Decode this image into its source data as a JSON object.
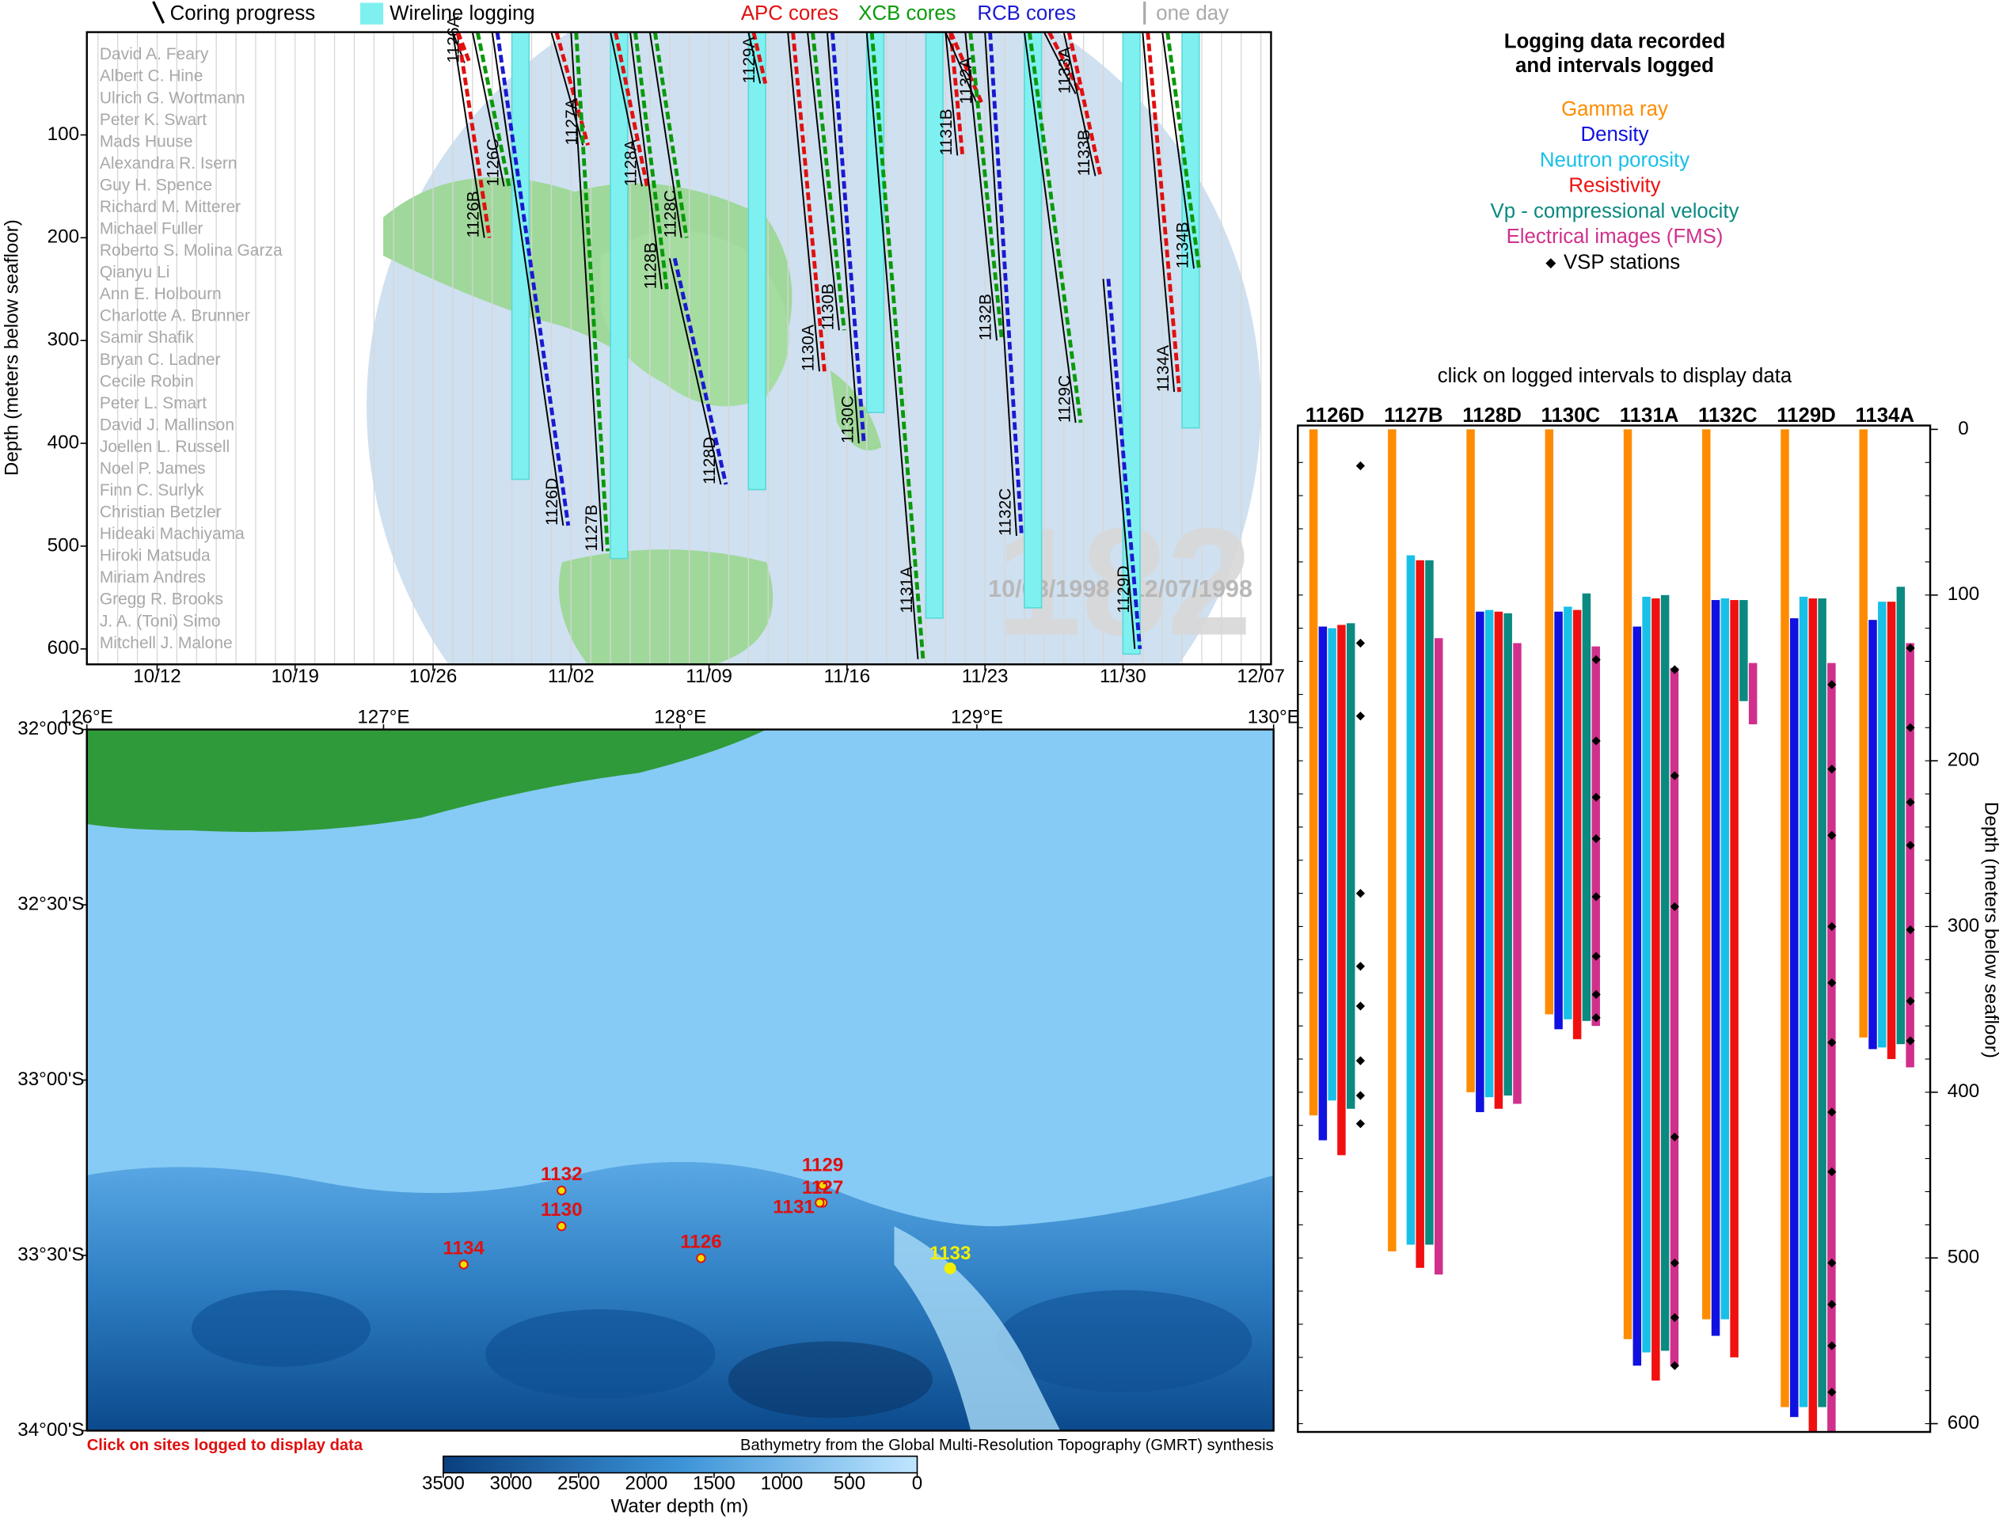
{
  "chart_data": [
    {
      "type": "timeline",
      "legend": [
        {
          "name": "Coring progress",
          "color": "#000000"
        },
        {
          "name": "Wireline logging",
          "color": "#7ff0f0"
        },
        {
          "name": "APC cores",
          "color": "#e01010"
        },
        {
          "name": "XCB cores",
          "color": "#0a9a0a"
        },
        {
          "name": "RCB cores",
          "color": "#1a1ad0"
        },
        {
          "name": "one day",
          "color": "#aaaaaa"
        }
      ],
      "ylabel": "Depth (meters below seafloor)",
      "ylim": [
        0,
        615
      ],
      "yticks": [
        100,
        200,
        300,
        400,
        500,
        600
      ],
      "xticks": [
        "10/12",
        "10/19",
        "10/26",
        "11/02",
        "11/09",
        "11/16",
        "11/23",
        "11/30",
        "12/07"
      ],
      "watermark": "182",
      "date_range": "10/08/1998 - 12/07/1998",
      "authors": [
        "David A. Feary",
        "Albert C. Hine",
        "Ulrich G. Wortmann",
        "Peter K. Swart",
        "Mads Huuse",
        "Alexandra R. Isern",
        "Guy H. Spence",
        "Richard M. Mitterer",
        "Michael Fuller",
        "Roberto S. Molina Garza",
        "Qianyu Li",
        "Ann E. Holbourn",
        "Charlotte A. Brunner",
        "Samir Shafik",
        "Bryan C. Ladner",
        "Cecile Robin",
        "Peter L. Smart",
        "David J. Mallinson",
        "Joellen L. Russell",
        "Noel P. James",
        "Finn C. Surlyk",
        "Christian Betzler",
        "Hideaki Machiyama",
        "Hiroki Matsuda",
        "Miriam Andres",
        "Gregg R. Brooks",
        "J. A. (Toni) Simo",
        "Mitchell J. Malone"
      ],
      "holes": [
        {
          "name": "1126A",
          "start": "10/27",
          "end": "10/27",
          "top": 0,
          "bottom": 30,
          "core": "APC"
        },
        {
          "name": "1126B",
          "start": "10/27",
          "end": "10/28",
          "top": 0,
          "bottom": 200,
          "core": "APC"
        },
        {
          "name": "1126C",
          "start": "10/28",
          "end": "10/29",
          "top": 0,
          "bottom": 150,
          "core": "XCB"
        },
        {
          "name": "1126D",
          "start": "10/29",
          "end": "11/01",
          "top": 0,
          "bottom": 480,
          "core": "RCB"
        },
        {
          "name": "1127A",
          "start": "11/01",
          "end": "11/02",
          "top": 0,
          "bottom": 110,
          "core": "APC"
        },
        {
          "name": "1127B",
          "start": "11/02",
          "end": "11/03",
          "top": 0,
          "bottom": 505,
          "core": "XCB"
        },
        {
          "name": "1128A",
          "start": "11/04",
          "end": "11/05",
          "top": 0,
          "bottom": 150,
          "core": "APC"
        },
        {
          "name": "1128B",
          "start": "11/05",
          "end": "11/06",
          "top": 0,
          "bottom": 250,
          "core": "XCB"
        },
        {
          "name": "1128C",
          "start": "11/06",
          "end": "11/07",
          "top": 0,
          "bottom": 200,
          "core": "XCB"
        },
        {
          "name": "1128D",
          "start": "11/07",
          "end": "11/09",
          "top": 220,
          "bottom": 440,
          "core": "RCB"
        },
        {
          "name": "1129A",
          "start": "11/11",
          "end": "11/11",
          "top": 0,
          "bottom": 50,
          "core": "APC"
        },
        {
          "name": "1130A",
          "start": "11/13",
          "end": "11/14",
          "top": 0,
          "bottom": 330,
          "core": "APC"
        },
        {
          "name": "1130B",
          "start": "11/14",
          "end": "11/15",
          "top": 0,
          "bottom": 290,
          "core": "XCB"
        },
        {
          "name": "1130C",
          "start": "11/15",
          "end": "11/16",
          "top": 0,
          "bottom": 400,
          "core": "RCB"
        },
        {
          "name": "1131A",
          "start": "11/17",
          "end": "11/19",
          "top": 0,
          "bottom": 610,
          "core": "XCB"
        },
        {
          "name": "1131B",
          "start": "11/21",
          "end": "11/21",
          "top": 0,
          "bottom": 120,
          "core": "APC"
        },
        {
          "name": "1132A",
          "start": "11/21",
          "end": "11/22",
          "top": 0,
          "bottom": 70,
          "core": "APC"
        },
        {
          "name": "1132B",
          "start": "11/22",
          "end": "11/23",
          "top": 0,
          "bottom": 300,
          "core": "XCB"
        },
        {
          "name": "1132C",
          "start": "11/23",
          "end": "11/24",
          "top": 0,
          "bottom": 490,
          "core": "RCB"
        },
        {
          "name": "1129C",
          "start": "11/25",
          "end": "11/27",
          "top": 0,
          "bottom": 380,
          "core": "XCB"
        },
        {
          "name": "1133A",
          "start": "11/26",
          "end": "11/27",
          "top": 0,
          "bottom": 60,
          "core": "APC"
        },
        {
          "name": "1133B",
          "start": "11/27",
          "end": "11/28",
          "top": 0,
          "bottom": 140,
          "core": "APC"
        },
        {
          "name": "1129D",
          "start": "11/29",
          "end": "11/30",
          "top": 240,
          "bottom": 600,
          "core": "RCB"
        },
        {
          "name": "1134A",
          "start": "12/01",
          "end": "12/02",
          "top": 0,
          "bottom": 350,
          "core": "APC"
        },
        {
          "name": "1134B",
          "start": "12/02",
          "end": "12/03",
          "top": 0,
          "bottom": 230,
          "core": "XCB"
        }
      ],
      "logging": [
        {
          "hole": "1126D",
          "start": "10/30",
          "end": "10/31",
          "bottom": 435
        },
        {
          "hole": "1127B",
          "start": "11/04",
          "end": "11/05",
          "bottom": 512
        },
        {
          "hole": "1128D",
          "start": "11/11",
          "end": "11/12",
          "bottom": 445
        },
        {
          "hole": "1130C",
          "start": "11/17",
          "end": "11/18",
          "bottom": 370
        },
        {
          "hole": "1131A",
          "start": "11/20",
          "end": "11/21",
          "bottom": 570
        },
        {
          "hole": "1132C",
          "start": "11/25",
          "end": "11/26",
          "bottom": 560
        },
        {
          "hole": "1129D",
          "start": "11/30",
          "end": "12/01",
          "bottom": 605
        },
        {
          "hole": "1134A",
          "start": "12/03",
          "end": "12/04",
          "bottom": 385
        }
      ]
    },
    {
      "type": "map",
      "xlim": [
        126,
        130
      ],
      "ylim": [
        -34,
        -32
      ],
      "xticks": [
        {
          "value": 126,
          "label": "126°E"
        },
        {
          "value": 127,
          "label": "127°E"
        },
        {
          "value": 128,
          "label": "128°E"
        },
        {
          "value": 129,
          "label": "129°E"
        },
        {
          "value": 130,
          "label": "130°E"
        }
      ],
      "yticks": [
        {
          "value": -32,
          "label": "32°00'S"
        },
        {
          "value": -32.5,
          "label": "32°30'S"
        },
        {
          "value": -33,
          "label": "33°00'S"
        },
        {
          "value": -33.5,
          "label": "33°30'S"
        },
        {
          "value": -34,
          "label": "34°00'S"
        }
      ],
      "sites": [
        {
          "name": "1132",
          "lon": 127.6,
          "lat": -33.315,
          "color": "#e01010"
        },
        {
          "name": "1130",
          "lon": 127.6,
          "lat": -33.417,
          "color": "#e01010"
        },
        {
          "name": "1134",
          "lon": 127.27,
          "lat": -33.526,
          "color": "#e01010"
        },
        {
          "name": "1126",
          "lon": 128.07,
          "lat": -33.508,
          "color": "#e01010"
        },
        {
          "name": "1129",
          "lon": 128.48,
          "lat": -33.3,
          "color": "#e01010"
        },
        {
          "name": "1127",
          "lon": 128.48,
          "lat": -33.35,
          "color": "#e01010"
        },
        {
          "name": "1131",
          "lon": 128.47,
          "lat": -33.35,
          "color": "#e01010"
        },
        {
          "name": "1133",
          "lon": 128.91,
          "lat": -33.537,
          "color": "#f0f000"
        }
      ],
      "note": "Click on sites logged to display data",
      "credit": "Bathymetry from the Global Multi-Resolution Topography (GMRT) synthesis",
      "colorbar": {
        "label": "Water depth (m)",
        "lim": [
          3500,
          0
        ],
        "ticks": [
          3500,
          3000,
          2500,
          2000,
          1500,
          1000,
          500,
          0
        ]
      }
    },
    {
      "type": "range_bar",
      "title": [
        "Logging data recorded",
        "and intervals logged"
      ],
      "subtitle": "click on logged intervals to display data",
      "ylabel": "Depth (meters below seafloor)",
      "ylim": [
        0,
        605
      ],
      "yticks": [
        0,
        100,
        200,
        300,
        400,
        500,
        600
      ],
      "categories": [
        "1126D",
        "1127B",
        "1128D",
        "1130C",
        "1131A",
        "1132C",
        "1129D",
        "1134A"
      ],
      "series": [
        {
          "name": "Gamma ray",
          "color": "#ff8c00",
          "top": [
            0,
            0,
            0,
            0,
            0,
            0,
            0,
            0
          ],
          "bottom": [
            414,
            496,
            400,
            353,
            549,
            537,
            590,
            367
          ]
        },
        {
          "name": "Density",
          "color": "#1010e0",
          "top": [
            119,
            null,
            110,
            110,
            119,
            103,
            114,
            115
          ],
          "bottom": [
            429,
            null,
            412,
            362,
            565,
            547,
            596,
            374
          ]
        },
        {
          "name": "Neutron porosity",
          "color": "#18c0e8",
          "top": [
            120,
            76,
            109,
            107,
            101,
            102,
            101,
            104
          ],
          "bottom": [
            405,
            492,
            403,
            356,
            557,
            537,
            590,
            373
          ]
        },
        {
          "name": "Resistivity",
          "color": "#f01010",
          "top": [
            118,
            79,
            110,
            109,
            102,
            103,
            102,
            104
          ],
          "bottom": [
            438,
            506,
            410,
            368,
            574,
            560,
            605,
            380
          ]
        },
        {
          "name": "Vp - compressional velocity",
          "color": "#0a8a80",
          "top": [
            117,
            79,
            111,
            99,
            100,
            103,
            102,
            95
          ],
          "bottom": [
            410,
            492,
            402,
            357,
            556,
            164,
            590,
            371
          ]
        },
        {
          "name": "Electrical images (FMS)",
          "color": "#d0308c",
          "top": [
            null,
            126,
            129,
            131,
            144,
            141,
            141,
            129
          ],
          "bottom": [
            null,
            510,
            407,
            360,
            565,
            178,
            605,
            385
          ]
        }
      ],
      "vsp": {
        "name": "VSP stations",
        "color": "#000000",
        "values": [
          [
            22,
            129,
            173,
            280,
            324,
            348,
            381,
            402,
            419
          ],
          [],
          [],
          [
            139,
            188,
            222,
            247,
            282,
            318,
            341,
            355
          ],
          [
            145,
            209,
            288,
            427,
            503,
            536,
            565
          ],
          [],
          [
            154,
            205,
            245,
            300,
            334,
            370,
            412,
            448,
            503,
            528,
            553,
            581
          ],
          [
            132,
            180,
            225,
            251,
            302,
            345,
            369
          ]
        ]
      }
    }
  ]
}
